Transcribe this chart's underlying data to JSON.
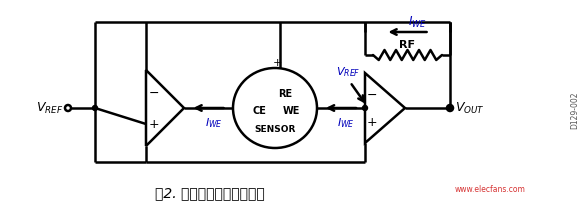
{
  "title": "图2. 简化电化学传感器电路",
  "title_fontsize": 10,
  "background_color": "#ffffff",
  "line_color": "#000000",
  "blue_color": "#0000bb",
  "fig_width": 5.86,
  "fig_height": 2.1,
  "dpi": 100,
  "watermark_text": "www.elecfans.com",
  "watermark_color": "#cc0000",
  "serial_text": "D129-002",
  "lw": 1.8
}
